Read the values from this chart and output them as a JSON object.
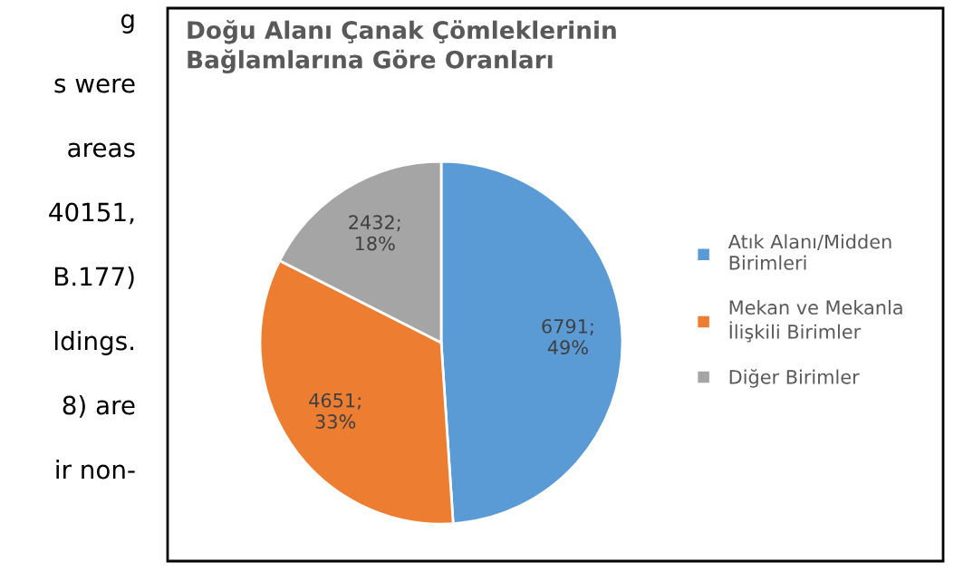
{
  "chart_data": {
    "type": "pie",
    "title": "Doğu Alanı Çanak Çömleklerinin\nBağlamlarına Göre Oranları",
    "categories": [
      "Atık Alanı/Midden\nBirimleri",
      "Mekan ve Mekanla\nİlişkili Birimler",
      "Diğer Birimler"
    ],
    "values": [
      6791,
      4651,
      2432
    ],
    "colors": [
      "#5b9bd5",
      "#ed7d31",
      "#a5a5a5"
    ],
    "value_labels": [
      "6791;\n49%",
      "4651;\n33%",
      "2432;\n18%"
    ],
    "legend": "right",
    "annotations": [
      "g",
      "s were",
      "areas",
      "40151,",
      "B.177)",
      "ldings.",
      "8) are",
      "ir non-"
    ]
  }
}
